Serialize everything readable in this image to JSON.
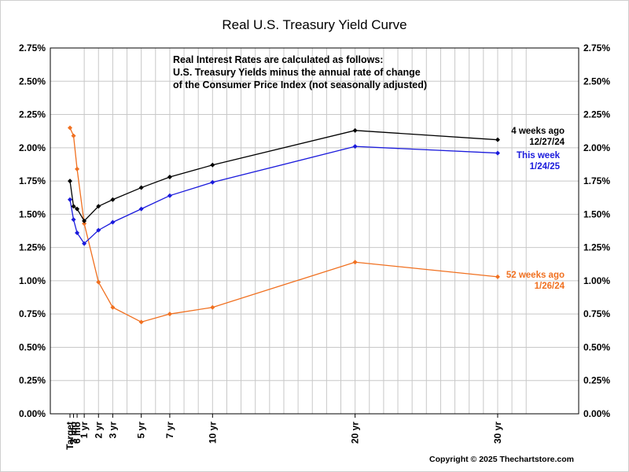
{
  "chart_data": {
    "type": "line",
    "title": "Real U.S. Treasury Yield Curve",
    "xlabel": "",
    "ylabel": "",
    "ylim": [
      0,
      2.75
    ],
    "yticks": [
      "0.00%",
      "0.25%",
      "0.50%",
      "0.75%",
      "1.00%",
      "1.25%",
      "1.50%",
      "1.75%",
      "2.00%",
      "2.25%",
      "2.50%",
      "2.75%"
    ],
    "categories": [
      "Target",
      "3 mo",
      "6 mo",
      "1 yr",
      "2 yr",
      "3 yr",
      "5 yr",
      "7 yr",
      "10 yr",
      "20 yr",
      "30 yr"
    ],
    "x_months": [
      0,
      3,
      6,
      12,
      24,
      36,
      60,
      84,
      120,
      240,
      360
    ],
    "grid": true,
    "annotation": [
      "Real Interest Rates are calculated as follows:",
      "U.S. Treasury Yields minus the annual rate of change",
      "of the Consumer Price Index (not seasonally adjusted)"
    ],
    "series": [
      {
        "label_lines": [
          "4 weeks ago",
          "12/27/24"
        ],
        "color": "#000000",
        "values": [
          1.75,
          1.56,
          1.54,
          1.45,
          1.56,
          1.61,
          1.7,
          1.78,
          1.87,
          2.13,
          2.06
        ]
      },
      {
        "label_lines": [
          "This week",
          "1/24/25"
        ],
        "color": "#1a1adc",
        "values": [
          1.61,
          1.46,
          1.36,
          1.28,
          1.38,
          1.44,
          1.54,
          1.64,
          1.74,
          2.01,
          1.96
        ]
      },
      {
        "label_lines": [
          "52 weeks ago",
          "1/26/24"
        ],
        "color": "#f07020",
        "values": [
          2.15,
          2.09,
          1.84,
          1.43,
          0.99,
          0.8,
          0.69,
          0.75,
          0.8,
          1.14,
          1.03
        ]
      }
    ],
    "copyright": "Copyright © 2025 Thechartstore.com"
  }
}
